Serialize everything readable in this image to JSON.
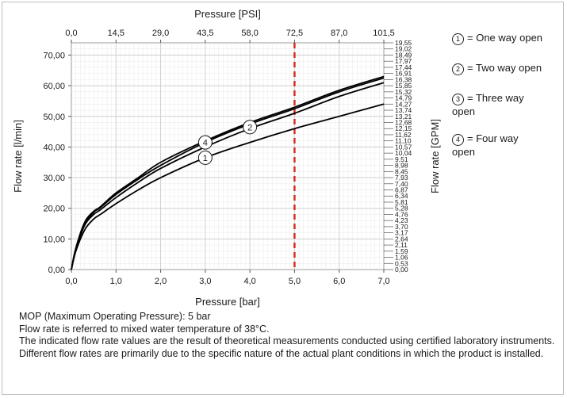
{
  "chart_data": {
    "type": "line",
    "top_axis_label": "Pressure [PSI]",
    "top_ticks": [
      "0,0",
      "14,5",
      "29,0",
      "43,5",
      "58,0",
      "72,5",
      "87,0",
      "101,5"
    ],
    "xlabel": "Pressure [bar]",
    "x_ticks": [
      "0,0",
      "1,0",
      "2,0",
      "3,0",
      "4,0",
      "5,0",
      "6,0",
      "7,0"
    ],
    "xlim": [
      0,
      7
    ],
    "ylabel": "Flow rate [l/min]",
    "y_ticks": [
      "0,00",
      "10,00",
      "20,00",
      "30,00",
      "40,00",
      "50,00",
      "60,00",
      "70,00"
    ],
    "ylim": [
      0,
      74
    ],
    "right_axis_label": "Flow rate [GPM]",
    "right_ticks": [
      "0,00",
      "0,53",
      "1,06",
      "1,59",
      "2,11",
      "2,64",
      "3,17",
      "3,70",
      "4,23",
      "4,76",
      "5,28",
      "5,81",
      "6,34",
      "6,87",
      "7,40",
      "7,93",
      "8,45",
      "8,98",
      "9,51",
      "10,04",
      "10,57",
      "11,10",
      "11,62",
      "12,15",
      "12,68",
      "13,21",
      "13,74",
      "14,27",
      "14,79",
      "15,32",
      "15,85",
      "16,38",
      "16,91",
      "17,44",
      "17,97",
      "18,49",
      "19,02",
      "19,55"
    ],
    "mop_line_x": 5.0,
    "grid": true,
    "series": [
      {
        "id": "1",
        "x": [
          0,
          0.1,
          0.3,
          0.5,
          0.65,
          1.0,
          1.5,
          2.0,
          3.0,
          4.0,
          5.0,
          6.0,
          7.0
        ],
        "y": [
          0,
          6,
          13,
          16.5,
          18.0,
          21.5,
          26.0,
          30.0,
          36.5,
          41.5,
          46.0,
          50.0,
          54.0
        ]
      },
      {
        "id": "2",
        "x": [
          0,
          0.1,
          0.3,
          0.5,
          0.65,
          1.0,
          1.5,
          2.0,
          3.0,
          4.0,
          5.0,
          6.0,
          7.0
        ],
        "y": [
          0,
          6.5,
          14.5,
          18.0,
          19.5,
          23.5,
          28.5,
          33.0,
          40.0,
          46.0,
          51.0,
          56.5,
          61.0
        ]
      },
      {
        "id": "3",
        "x": [
          0,
          0.1,
          0.3,
          0.5,
          0.65,
          1.0,
          1.5,
          2.0,
          3.0,
          4.0,
          5.0,
          6.0,
          7.0
        ],
        "y": [
          0,
          6.8,
          15.0,
          18.7,
          20.2,
          24.5,
          29.5,
          34.0,
          41.5,
          47.5,
          52.5,
          58.0,
          62.5
        ]
      },
      {
        "id": "4",
        "x": [
          0,
          0.1,
          0.3,
          0.5,
          0.65,
          1.0,
          1.5,
          2.0,
          3.0,
          4.0,
          5.0,
          6.0,
          7.0
        ],
        "y": [
          0,
          7.0,
          15.5,
          19.0,
          20.5,
          25.0,
          30.0,
          35.0,
          42.0,
          48.0,
          53.0,
          58.5,
          63.0
        ]
      }
    ],
    "markers": [
      {
        "label": "1",
        "x": 3.0,
        "y": 36.5
      },
      {
        "label": "4",
        "x": 3.0,
        "y": 41.5
      },
      {
        "label": "2",
        "x": 4.0,
        "y": 46.5
      }
    ],
    "legend": [
      {
        "num": "1",
        "text": "= One way open"
      },
      {
        "num": "2",
        "text": "= Two way open"
      },
      {
        "num": "3",
        "text": "= Three way open"
      },
      {
        "num": "4",
        "text": "= Four way open"
      }
    ],
    "colors": {
      "line": "#000000",
      "mop": "#d62d20",
      "grid": "#d0d0d0"
    }
  },
  "notes": [
    "MOP (Maximum Operating Pressure): 5 bar",
    "Flow rate is referred to mixed water temperature of 38°C.",
    "The indicated flow rate values are the result of theoretical measurements conducted using certified laboratory instruments.",
    "Different flow rates are primarily due to the specific nature of the actual plant conditions in which the product is installed."
  ]
}
